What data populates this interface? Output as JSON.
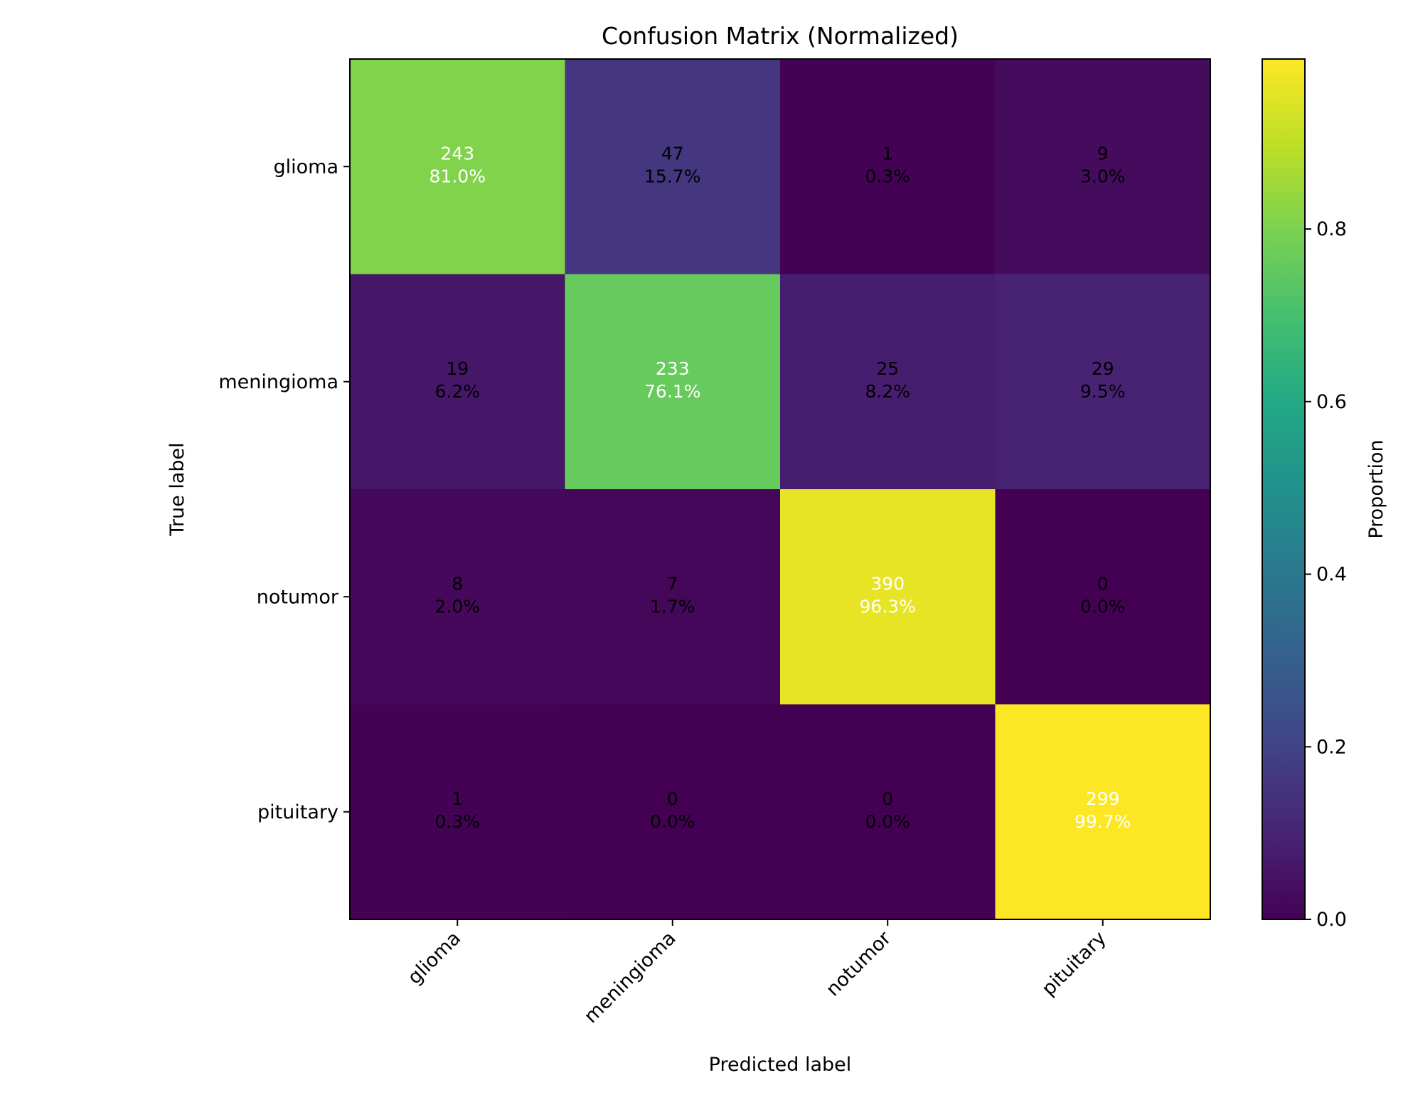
{
  "chart_data": {
    "type": "heatmap",
    "title": "Confusion Matrix (Normalized)",
    "xlabel": "Predicted label",
    "ylabel": "True label",
    "x_categories": [
      "glioma",
      "meningioma",
      "notumor",
      "pituitary"
    ],
    "y_categories": [
      "glioma",
      "meningioma",
      "notumor",
      "pituitary"
    ],
    "counts": [
      [
        243,
        47,
        1,
        9
      ],
      [
        19,
        233,
        25,
        29
      ],
      [
        8,
        7,
        390,
        0
      ],
      [
        1,
        0,
        0,
        299
      ]
    ],
    "percent_labels": [
      [
        "81.0%",
        "15.7%",
        "0.3%",
        "3.0%"
      ],
      [
        "6.2%",
        "76.1%",
        "8.2%",
        "9.5%"
      ],
      [
        "2.0%",
        "1.7%",
        "96.3%",
        "0.0%"
      ],
      [
        "0.3%",
        "0.0%",
        "0.0%",
        "99.7%"
      ]
    ],
    "proportions": [
      [
        0.81,
        0.157,
        0.003,
        0.03
      ],
      [
        0.062,
        0.761,
        0.082,
        0.095
      ],
      [
        0.02,
        0.017,
        0.963,
        0.0
      ],
      [
        0.003,
        0.0,
        0.0,
        0.997
      ]
    ],
    "colorbar": {
      "label": "Proportion",
      "range": [
        0.0,
        0.997
      ],
      "ticks": [
        0.0,
        0.2,
        0.4,
        0.6,
        0.8
      ],
      "tick_labels": [
        "0.0",
        "0.2",
        "0.4",
        "0.6",
        "0.8"
      ],
      "colormap": "viridis"
    },
    "grid": false
  }
}
